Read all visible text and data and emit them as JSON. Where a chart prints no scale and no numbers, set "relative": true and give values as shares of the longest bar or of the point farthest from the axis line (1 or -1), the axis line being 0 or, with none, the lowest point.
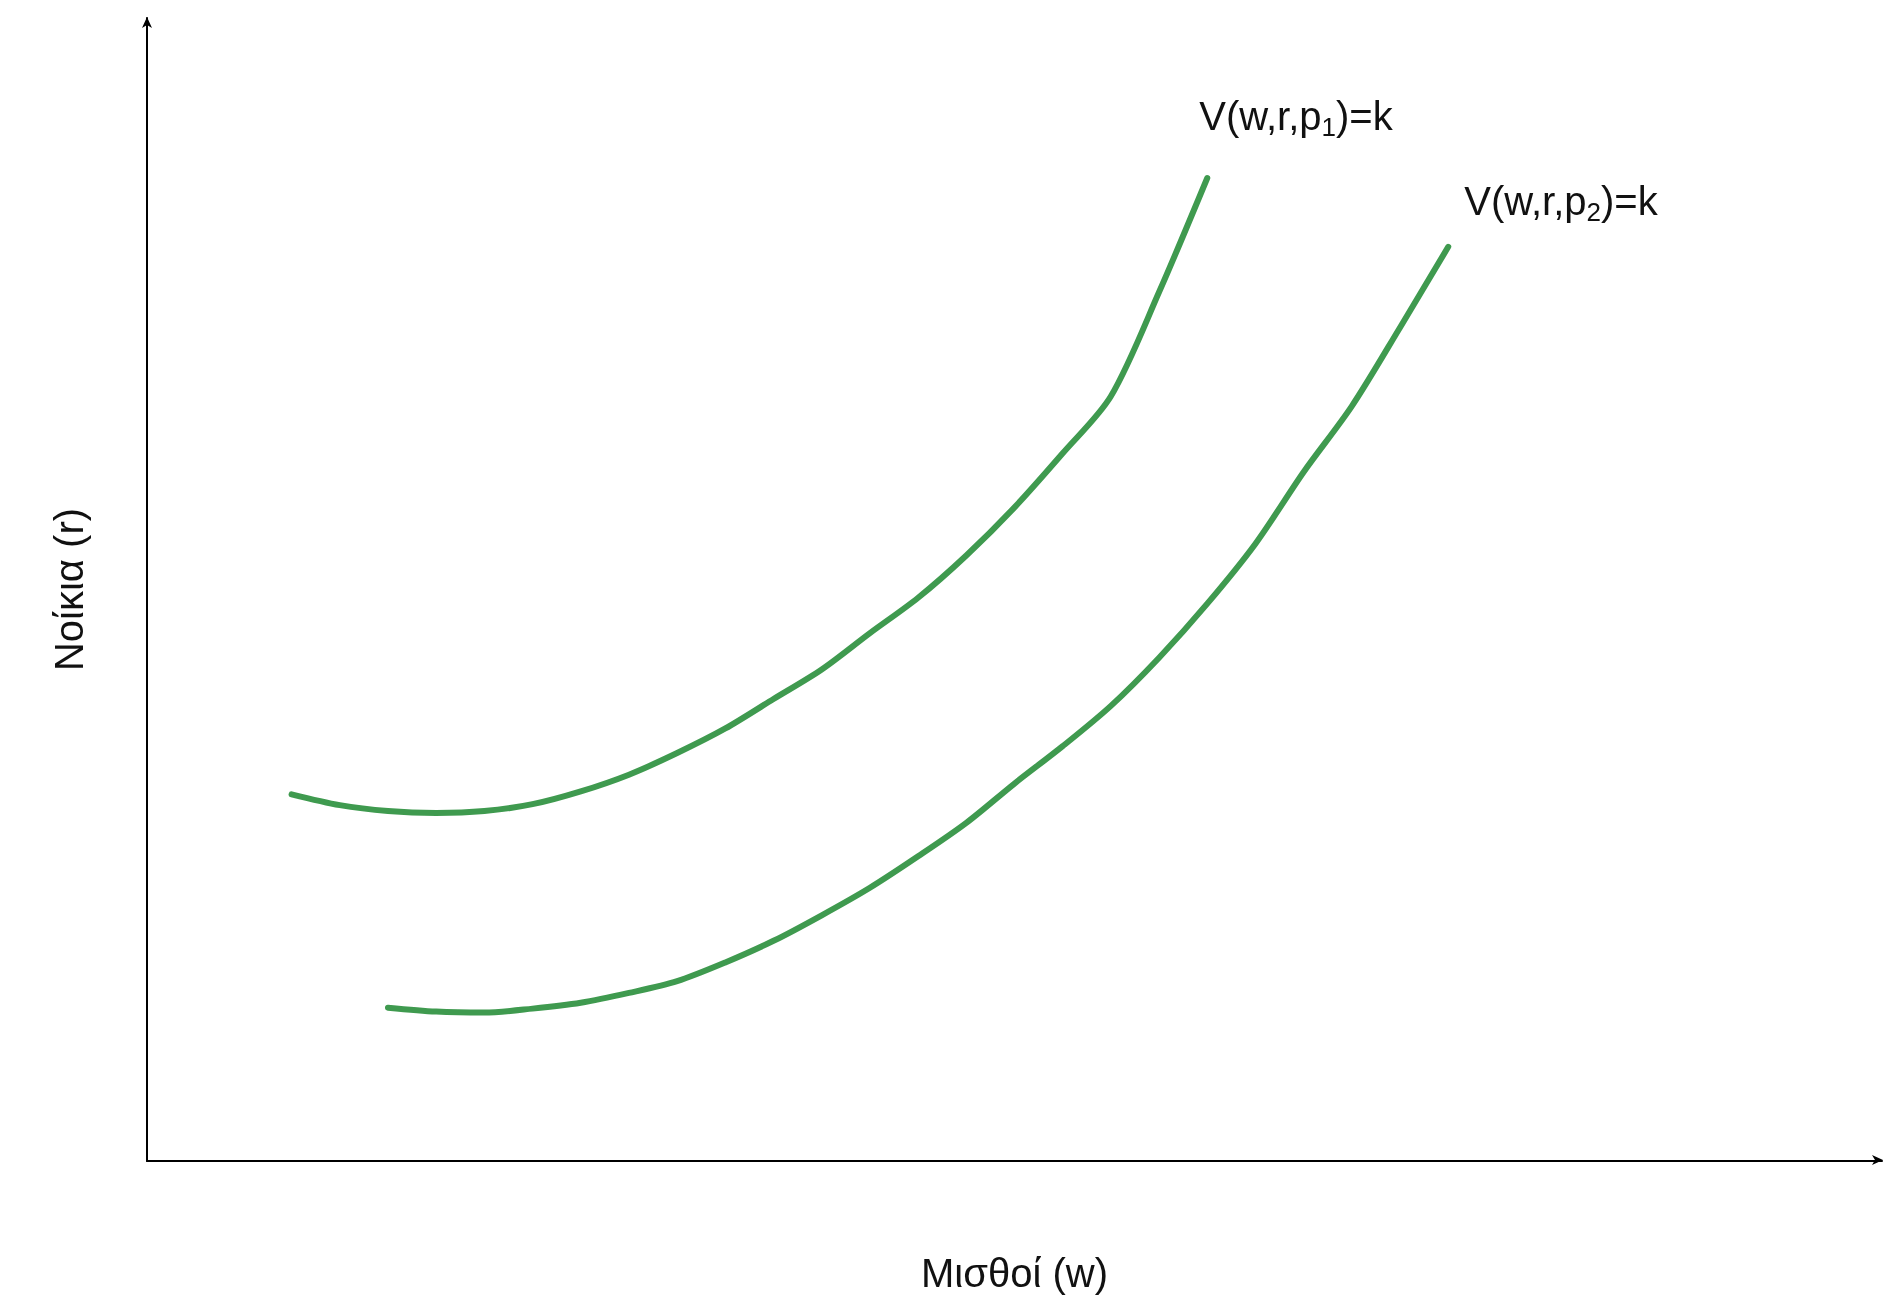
{
  "chart_data": {
    "type": "line",
    "relative": true,
    "xlabel": "Μισθοί (w)",
    "ylabel": "Νοίκια (r)",
    "legend": false,
    "grid": false,
    "marker": "none",
    "line_style": "solid",
    "categories": [
      null,
      null,
      null,
      null,
      null,
      null,
      null,
      null,
      null,
      null,
      null,
      null,
      null,
      null,
      null,
      null,
      null,
      null,
      null,
      null,
      null,
      null,
      null,
      null,
      null,
      null,
      null,
      null,
      null,
      null,
      null,
      null,
      null,
      null,
      null,
      null,
      null
    ],
    "series": [
      {
        "name": "V(w,r,p$_{1}$)=k",
        "color": "#3f9a4f",
        "values": [
          null,
          null,
          null,
          0.373,
          0.362,
          0.356,
          0.354,
          0.356,
          0.363,
          0.376,
          0.393,
          0.415,
          0.44,
          0.47,
          0.5,
          0.537,
          0.573,
          0.616,
          0.665,
          0.72,
          0.778,
          0.884,
          1.0,
          null,
          null,
          null,
          null,
          null,
          null,
          null,
          null,
          null,
          null,
          null,
          null,
          null,
          null
        ]
      },
      {
        "name": "V(w,r,p$_{2}$)=k",
        "color": "#3f9a4f",
        "values": [
          null,
          null,
          null,
          null,
          null,
          0.156,
          0.152,
          0.151,
          0.155,
          0.161,
          0.171,
          0.183,
          0.202,
          0.224,
          0.25,
          0.278,
          0.31,
          0.344,
          0.384,
          0.422,
          0.463,
          0.512,
          0.567,
          0.628,
          0.701,
          0.768,
          0.848,
          0.93,
          null,
          null,
          null,
          null,
          null,
          null,
          null,
          null,
          null
        ]
      }
    ]
  }
}
